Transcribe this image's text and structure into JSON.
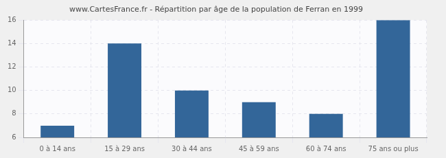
{
  "chart_data": {
    "type": "bar",
    "title": "www.CartesFrance.fr - Répartition par âge de la population de Ferran en 1999",
    "categories": [
      "0 à 14 ans",
      "15 à 29 ans",
      "30 à 44 ans",
      "45 à 59 ans",
      "60 à 74 ans",
      "75 ans ou plus"
    ],
    "values": [
      7,
      14,
      10,
      9,
      8,
      16
    ],
    "color": "#336699",
    "ylim": [
      6,
      16
    ],
    "yticks": [
      6,
      8,
      10,
      12,
      14,
      16
    ],
    "grid": true
  }
}
